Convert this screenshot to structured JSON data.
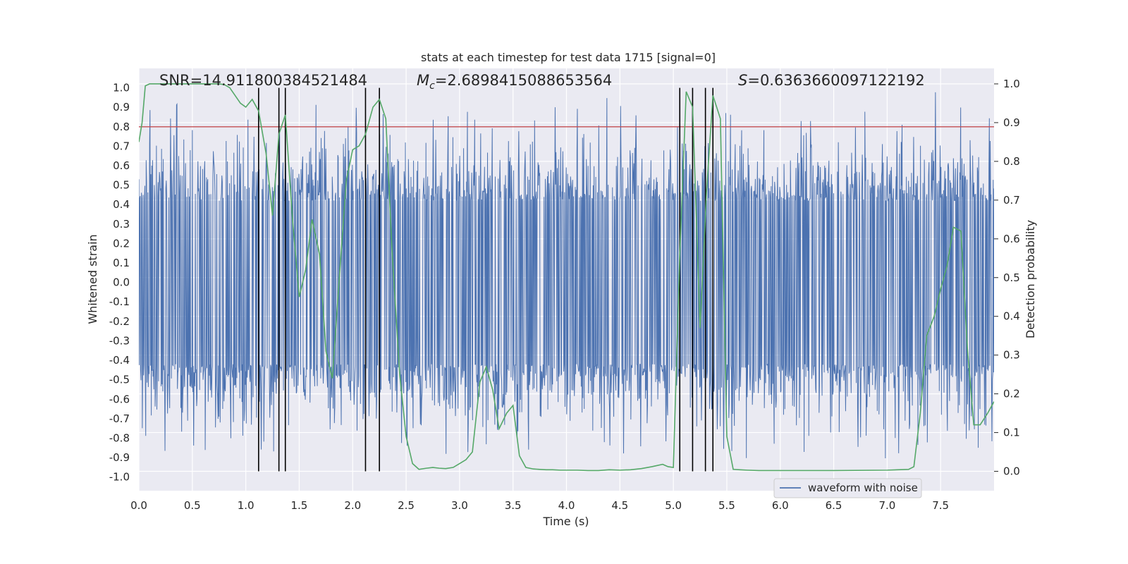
{
  "chart_data": {
    "type": "line",
    "title": "stats at each timestep for test data 1715 [signal=0]",
    "xlabel": "Time (s)",
    "ylabel": "Whitened strain",
    "ylabel_right": "Detection probability",
    "xlim": [
      0.0,
      8.0
    ],
    "ylim": [
      -1.07,
      1.1
    ],
    "ylim_right": [
      -0.05,
      1.04
    ],
    "x_ticks": [
      0.0,
      0.5,
      1.0,
      1.5,
      2.0,
      2.5,
      3.0,
      3.5,
      4.0,
      4.5,
      5.0,
      5.5,
      6.0,
      6.5,
      7.0,
      7.5
    ],
    "x_tick_labels": [
      "0.0",
      "0.5",
      "1.0",
      "1.5",
      "2.0",
      "2.5",
      "3.0",
      "3.5",
      "4.0",
      "4.5",
      "5.0",
      "5.5",
      "6.0",
      "6.5",
      "7.0",
      "7.5"
    ],
    "y_ticks": [
      1.0,
      0.9,
      0.8,
      0.7,
      0.6,
      0.5,
      0.4,
      0.3,
      0.2,
      0.1,
      0.0,
      -0.1,
      -0.2,
      -0.3,
      -0.4,
      -0.5,
      -0.6,
      -0.7,
      -0.8,
      -0.9,
      -1.0
    ],
    "y_tick_labels": [
      "1.0",
      "0.9",
      "0.8",
      "0.7",
      "0.6",
      "0.5",
      "0.4",
      "0.3",
      "0.2",
      "0.1",
      "0.0",
      "-0.1",
      "-0.2",
      "-0.3",
      "-0.4",
      "-0.5",
      "-0.6",
      "-0.7",
      "-0.8",
      "-0.9",
      "-1.0"
    ],
    "y_ticks_right": [
      1.0,
      0.9,
      0.8,
      0.7,
      0.6,
      0.5,
      0.4,
      0.3,
      0.2,
      0.1,
      0.0
    ],
    "y_tick_labels_right": [
      "1.0",
      "0.9",
      "0.8",
      "0.7",
      "0.6",
      "0.5",
      "0.4",
      "0.3",
      "0.2",
      "0.1",
      "0.0"
    ],
    "annotations": {
      "snr": "SNR=14.911800384521484",
      "mc_symbol": "M",
      "mc_sub": "c",
      "mc_value": "=2.6898415088653564",
      "s_symbol": "S",
      "s_value": "=0.6363660097122192"
    },
    "threshold": {
      "value": 0.8,
      "color": "#c44e52"
    },
    "event_markers": [
      1.12,
      1.31,
      1.37,
      2.12,
      2.25,
      5.06,
      5.18,
      5.3,
      5.37
    ],
    "waveform": {
      "name": "waveform with noise",
      "color": "#4c72b0",
      "n_points": 2000,
      "typical_envelope": [
        -0.42,
        0.42
      ],
      "spike_range": [
        -0.97,
        0.99
      ]
    },
    "series": [
      {
        "name": "detection probability",
        "axis": "right",
        "color": "#55a868",
        "x": [
          0.0,
          0.03,
          0.06,
          0.1,
          0.2,
          0.3,
          0.4,
          0.5,
          0.6,
          0.7,
          0.75,
          0.8,
          0.85,
          0.9,
          0.95,
          1.0,
          1.06,
          1.12,
          1.19,
          1.25,
          1.31,
          1.37,
          1.44,
          1.5,
          1.56,
          1.62,
          1.69,
          1.75,
          1.81,
          1.87,
          1.94,
          2.0,
          2.06,
          2.12,
          2.19,
          2.25,
          2.31,
          2.37,
          2.44,
          2.5,
          2.56,
          2.62,
          2.69,
          2.75,
          2.81,
          2.87,
          2.94,
          3.0,
          3.06,
          3.12,
          3.19,
          3.25,
          3.31,
          3.37,
          3.44,
          3.5,
          3.56,
          3.62,
          3.69,
          3.75,
          3.81,
          3.87,
          3.94,
          4.0,
          4.1,
          4.2,
          4.3,
          4.4,
          4.5,
          4.6,
          4.7,
          4.8,
          4.9,
          4.95,
          5.0,
          5.06,
          5.12,
          5.18,
          5.25,
          5.31,
          5.37,
          5.44,
          5.5,
          5.56,
          5.62,
          5.69,
          5.8,
          6.0,
          6.5,
          7.0,
          7.2,
          7.25,
          7.31,
          7.37,
          7.44,
          7.5,
          7.56,
          7.62,
          7.69,
          7.75,
          7.81,
          7.87,
          7.94,
          8.0
        ],
        "y": [
          0.85,
          0.9,
          0.995,
          1.0,
          1.0,
          1.0,
          1.0,
          1.0,
          1.0,
          1.0,
          1.0,
          0.998,
          0.99,
          0.97,
          0.95,
          0.94,
          0.96,
          0.93,
          0.82,
          0.66,
          0.87,
          0.92,
          0.64,
          0.45,
          0.52,
          0.65,
          0.56,
          0.31,
          0.24,
          0.48,
          0.75,
          0.83,
          0.84,
          0.87,
          0.94,
          0.96,
          0.91,
          0.56,
          0.25,
          0.09,
          0.02,
          0.005,
          0.008,
          0.01,
          0.008,
          0.007,
          0.01,
          0.02,
          0.03,
          0.05,
          0.23,
          0.27,
          0.21,
          0.11,
          0.15,
          0.17,
          0.04,
          0.01,
          0.006,
          0.005,
          0.004,
          0.004,
          0.003,
          0.003,
          0.003,
          0.002,
          0.002,
          0.004,
          0.003,
          0.004,
          0.007,
          0.012,
          0.018,
          0.012,
          0.01,
          0.56,
          0.98,
          0.94,
          0.37,
          0.72,
          0.97,
          0.91,
          0.09,
          0.005,
          0.004,
          0.003,
          0.002,
          0.002,
          0.002,
          0.003,
          0.005,
          0.012,
          0.15,
          0.35,
          0.4,
          0.47,
          0.53,
          0.63,
          0.62,
          0.32,
          0.12,
          0.12,
          0.15,
          0.18
        ]
      }
    ]
  },
  "legend": {
    "label": "waveform with noise",
    "position": "lower-right"
  }
}
